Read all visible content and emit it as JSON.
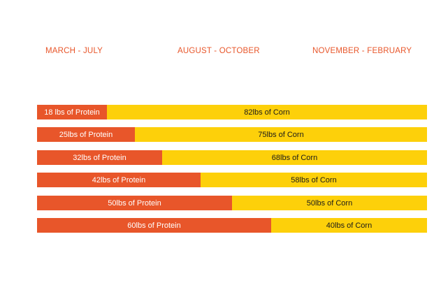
{
  "header": {
    "seasons": [
      "MARCH - JULY",
      "AUGUST - OCTOBER",
      "NOVEMBER - FEBRUARY"
    ]
  },
  "colors": {
    "protein": "#e8562a",
    "corn": "#fdd00a",
    "season_text": "#e8562a"
  },
  "chart_data": {
    "type": "bar",
    "stacked": true,
    "orientation": "horizontal",
    "series": [
      {
        "name": "Protein",
        "values": [
          18,
          25,
          32,
          42,
          50,
          60
        ]
      },
      {
        "name": "Corn",
        "values": [
          82,
          75,
          68,
          58,
          50,
          40
        ]
      }
    ],
    "labels": [
      {
        "protein": "18 lbs of Protein",
        "corn": "82lbs of Corn"
      },
      {
        "protein": "25lbs of Protein",
        "corn": "75lbs of Corn"
      },
      {
        "protein": "32lbs of Protein",
        "corn": "68lbs of Corn"
      },
      {
        "protein": "42lbs of Protein",
        "corn": "58lbs of Corn"
      },
      {
        "protein": "50lbs of Protein",
        "corn": "50lbs of Corn"
      },
      {
        "protein": "60lbs of Protein",
        "corn": "40lbs of Corn"
      }
    ],
    "xlim": [
      0,
      100
    ],
    "grid": false,
    "legend": "none"
  }
}
